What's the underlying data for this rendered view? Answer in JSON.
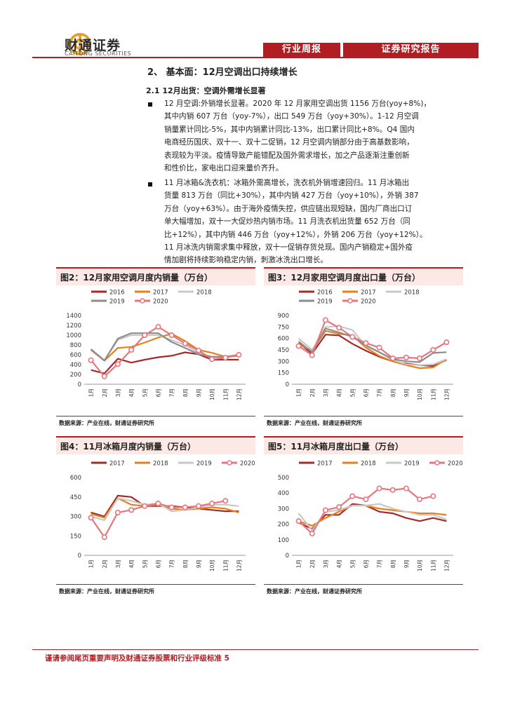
{
  "header": {
    "logo_cn": "财通证券",
    "logo_en": "CAITONG SECURITIES",
    "tag_left": "行业周报",
    "tag_right": "证券研究报告"
  },
  "section": {
    "title": "2、 基本面：12月空调出口持续增长",
    "subtitle": "2.1   12月出货：空调外需增长显著"
  },
  "paragraphs": [
    {
      "lines": [
        "12 月空调:外销增长显著。2020 年 12 月家用空调出货 1156 万台(yoy+8%)，",
        "其中内销 607 万台（yoy-7%），出口 549 万台（yoy+30%）。1-12 月空调",
        "销量累计同比-5%，其中内销累计同比-13%，出口累计同比+8%。Q4 国内",
        "电商经历国庆、双十一、双十二促销，12 月空调内销部分由于高基数影响，",
        "表现较为平淡。疫情导致产能错配及国外需求增长，加之产品逐渐注重创新",
        "和性价比，家电出口迎来量价齐升。"
      ]
    },
    {
      "lines": [
        "11 月冰箱&洗衣机：冰箱外需高增长，洗衣机外销增速回归。11 月冰箱出",
        "货量 813 万台（同比+30%），其中内销 427 万台（yoy+10%），外销 387",
        "万台（yoy+63%）。由于海外疫情失控，供应链出现短缺，国内厂商出口订",
        "单大幅增加，双十一大促炒热内销市场。11 月洗衣机出货量 652 万台（同",
        "比+12%），其中内销 446 万台（yoy+12%），外销 206 万台（yoy+12%）。",
        "11 月冰洗内销需求集中释放，双十一促销存货兑现。国内产销稳定+国外疫",
        "情加剧将持续影响稳定内销，刺激冰洗出口增长。"
      ]
    }
  ],
  "figures": [
    {
      "title": "图2：12月家用空调月度内销量（万台）",
      "source": "数据来源：产业在线，财通证券研究所"
    },
    {
      "title": "图3：12月家用空调月度出口量（万台）",
      "source": "数据来源：产业在线，财通证券研究所"
    },
    {
      "title": "图4：11月冰箱月度内销量（万台）",
      "source": "数据来源：产业在线，财通证券研究所"
    },
    {
      "title": "图5：11月冰箱月度出口量（万台）",
      "source": "数据来源：产业在线，财通证券研究所"
    }
  ],
  "footer": {
    "text": "谨请参阅尾页重要声明及财通证券股票和行业评级标准 5"
  },
  "colors": {
    "accent": "#b01e23"
  },
  "chart_data": [
    {
      "type": "line",
      "categories": [
        "1月",
        "2月",
        "3月",
        "4月",
        "5月",
        "6月",
        "7月",
        "8月",
        "9月",
        "10月",
        "11月",
        "12月"
      ],
      "ylim": [
        0,
        1400
      ],
      "yticks": [
        0,
        200,
        400,
        600,
        800,
        1000,
        1200,
        1400
      ],
      "legend_rows": [
        [
          "2016",
          "2017",
          "2018"
        ],
        [
          "2019",
          "2020"
        ]
      ],
      "series": [
        {
          "name": "2016",
          "color": "#a52a2a",
          "marker": false,
          "values": [
            290,
            220,
            520,
            440,
            500,
            550,
            580,
            650,
            610,
            500,
            500,
            500
          ]
        },
        {
          "name": "2017",
          "color": "#e6801a",
          "marker": false,
          "values": [
            700,
            480,
            740,
            760,
            850,
            950,
            1030,
            880,
            700,
            640,
            560,
            580
          ]
        },
        {
          "name": "2018",
          "color": "#c8c8c8",
          "marker": false,
          "values": [
            720,
            490,
            900,
            1000,
            1000,
            1000,
            900,
            800,
            640,
            560,
            560,
            600
          ]
        },
        {
          "name": "2019",
          "color": "#8c8c8c",
          "marker": false,
          "values": [
            710,
            480,
            930,
            1040,
            1040,
            1040,
            860,
            740,
            610,
            560,
            560,
            600
          ]
        },
        {
          "name": "2020",
          "color": "#e8747c",
          "marker": true,
          "values": [
            490,
            160,
            410,
            700,
            1000,
            1170,
            1000,
            830,
            690,
            510,
            540,
            600
          ]
        }
      ]
    },
    {
      "type": "line",
      "categories": [
        "1月",
        "2月",
        "3月",
        "4月",
        "5月",
        "6月",
        "7月",
        "8月",
        "9月",
        "10月",
        "11月",
        "12月"
      ],
      "ylim": [
        0,
        900
      ],
      "yticks": [
        0,
        150,
        300,
        450,
        600,
        750,
        900
      ],
      "legend_rows": [
        [
          "2016",
          "2017",
          "2018"
        ],
        [
          "2019",
          "2020"
        ]
      ],
      "series": [
        {
          "name": "2016",
          "color": "#a52a2a",
          "marker": false,
          "values": [
            540,
            400,
            650,
            640,
            530,
            440,
            360,
            300,
            270,
            250,
            240,
            320
          ]
        },
        {
          "name": "2017",
          "color": "#e6801a",
          "marker": false,
          "values": [
            520,
            440,
            700,
            660,
            640,
            480,
            370,
            300,
            250,
            210,
            220,
            330
          ]
        },
        {
          "name": "2018",
          "color": "#c8c8c8",
          "marker": false,
          "values": [
            600,
            450,
            750,
            760,
            710,
            500,
            420,
            320,
            260,
            250,
            260,
            330
          ]
        },
        {
          "name": "2019",
          "color": "#8c8c8c",
          "marker": false,
          "values": [
            560,
            420,
            730,
            680,
            620,
            510,
            420,
            330,
            300,
            290,
            410,
            420
          ]
        },
        {
          "name": "2020",
          "color": "#e8747c",
          "marker": true,
          "values": [
            500,
            380,
            840,
            740,
            620,
            540,
            480,
            340,
            350,
            340,
            450,
            550
          ]
        }
      ]
    },
    {
      "type": "line",
      "categories": [
        "1月",
        "2月",
        "3月",
        "4月",
        "5月",
        "6月",
        "7月",
        "8月",
        "9月",
        "10月",
        "11月",
        "12月"
      ],
      "ylim": [
        0,
        600
      ],
      "yticks": [
        0,
        150,
        300,
        450,
        600
      ],
      "legend_rows": [
        [
          "2017",
          "2018",
          "2019",
          "2020"
        ]
      ],
      "series": [
        {
          "name": "2017",
          "color": "#a52a2a",
          "marker": false,
          "values": [
            330,
            300,
            460,
            450,
            380,
            380,
            380,
            370,
            360,
            350,
            340,
            340
          ]
        },
        {
          "name": "2018",
          "color": "#e6801a",
          "marker": false,
          "values": [
            320,
            290,
            440,
            390,
            380,
            390,
            360,
            350,
            360,
            370,
            360,
            330
          ]
        },
        {
          "name": "2019",
          "color": "#c8c8c8",
          "marker": false,
          "values": [
            300,
            270,
            440,
            420,
            390,
            400,
            340,
            350,
            370,
            390,
            390,
            380
          ]
        },
        {
          "name": "2020",
          "color": "#e8747c",
          "marker": true,
          "values": [
            290,
            140,
            330,
            350,
            380,
            400,
            370,
            370,
            380,
            400,
            420,
            null
          ]
        }
      ]
    },
    {
      "type": "line",
      "categories": [
        "1月",
        "2月",
        "3月",
        "4月",
        "5月",
        "6月",
        "7月",
        "8月",
        "9月",
        "10月",
        "11月",
        "12月"
      ],
      "ylim": [
        0,
        500
      ],
      "yticks": [
        0,
        100,
        200,
        300,
        400,
        500
      ],
      "legend_rows": [
        [
          "2017",
          "2018",
          "2019",
          "2020"
        ]
      ],
      "series": [
        {
          "name": "2017",
          "color": "#a52a2a",
          "marker": false,
          "values": [
            210,
            170,
            260,
            260,
            330,
            320,
            280,
            270,
            240,
            220,
            240,
            220
          ]
        },
        {
          "name": "2018",
          "color": "#e6801a",
          "marker": false,
          "values": [
            220,
            190,
            240,
            280,
            320,
            320,
            300,
            290,
            280,
            270,
            270,
            260
          ]
        },
        {
          "name": "2019",
          "color": "#c8c8c8",
          "marker": false,
          "values": [
            270,
            160,
            280,
            290,
            320,
            320,
            330,
            300,
            280,
            260,
            260,
            230
          ]
        },
        {
          "name": "2020",
          "color": "#e8747c",
          "marker": true,
          "values": [
            220,
            140,
            290,
            310,
            380,
            360,
            430,
            420,
            430,
            360,
            380,
            null
          ]
        }
      ]
    }
  ]
}
